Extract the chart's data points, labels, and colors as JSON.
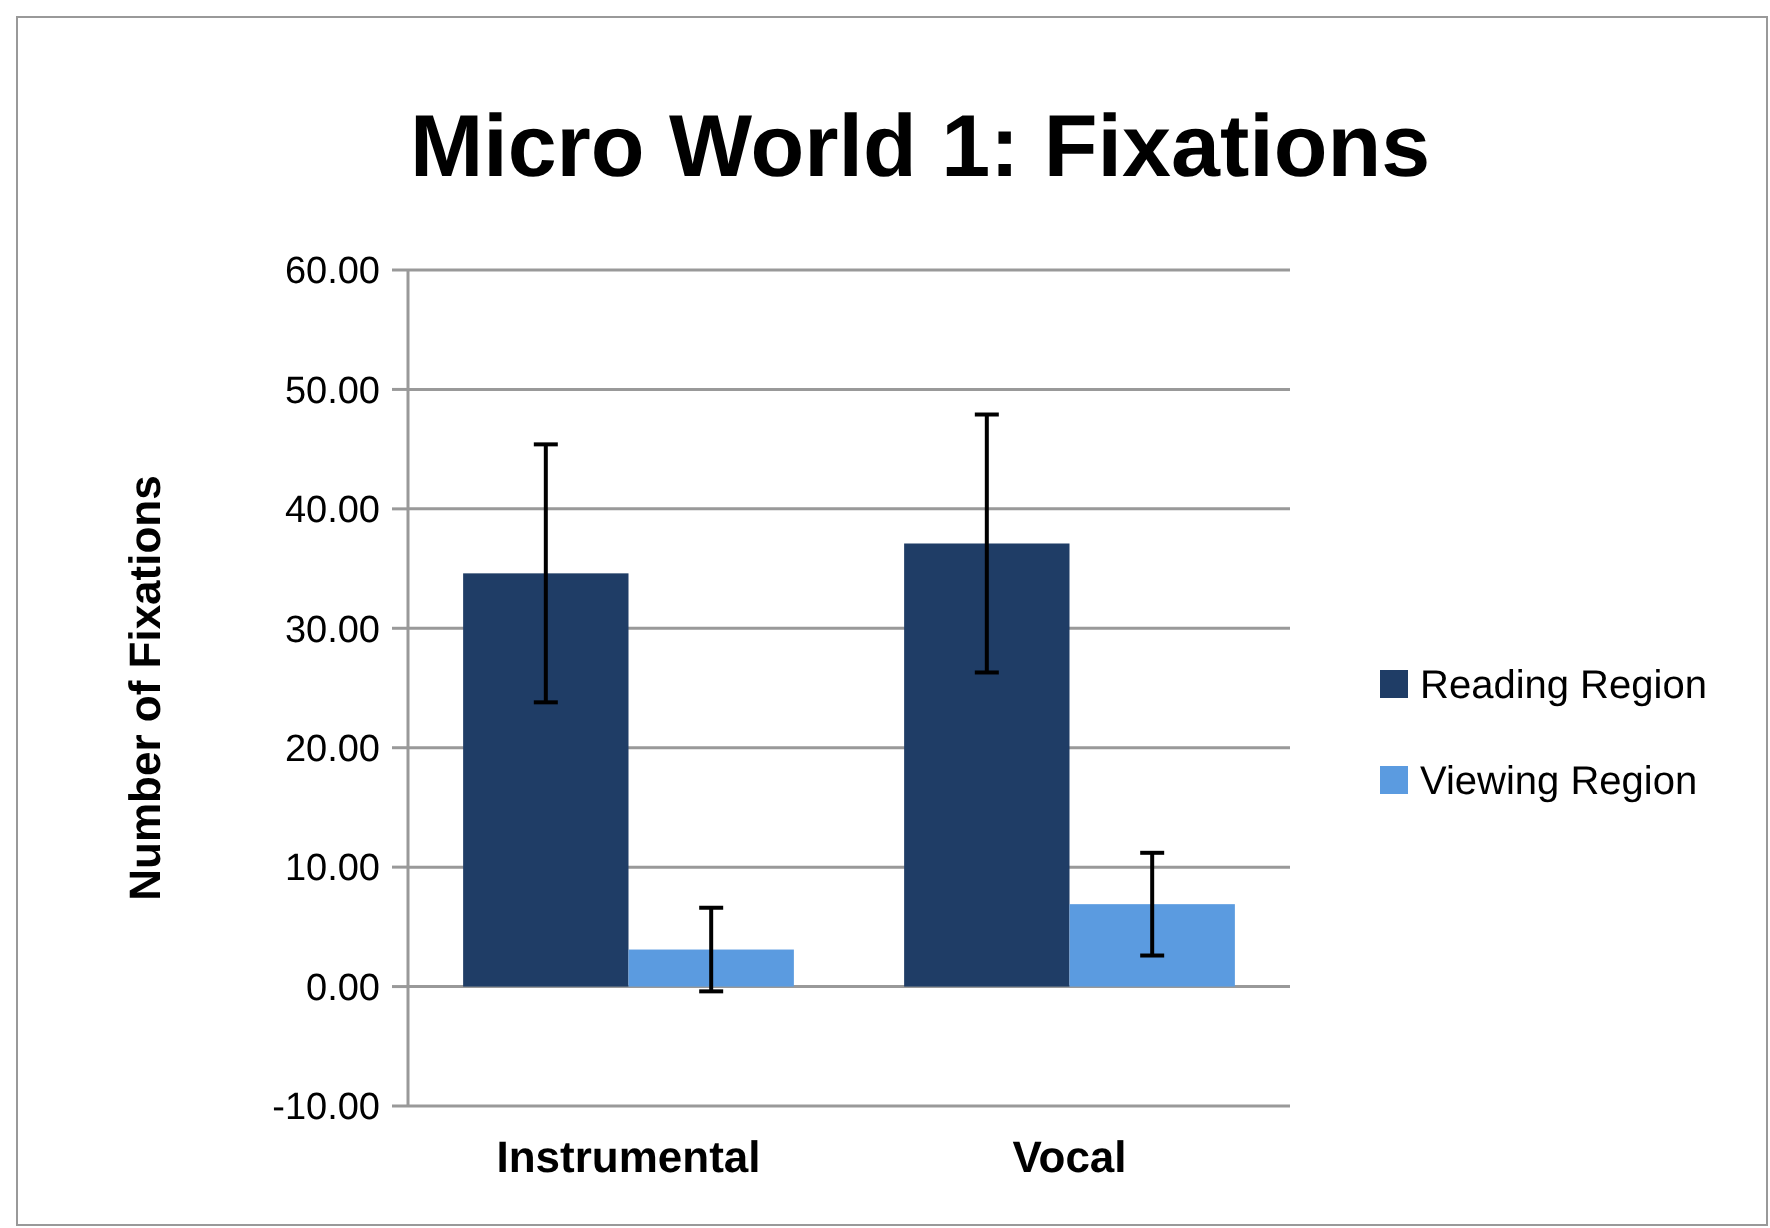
{
  "chart_data": {
    "type": "bar",
    "title": "Micro World 1: Fixations",
    "ylabel": "Number of Fixations",
    "categories": [
      "Instrumental",
      "Vocal"
    ],
    "series": [
      {
        "name": "Reading Region",
        "color": "#1f3d66",
        "values": [
          34.6,
          37.1
        ],
        "errors": [
          10.8,
          10.8
        ]
      },
      {
        "name": "Viewing Region",
        "color": "#5b9be0",
        "values": [
          3.1,
          6.9
        ],
        "errors": [
          3.5,
          4.3
        ]
      }
    ],
    "ylim": [
      -10,
      60
    ],
    "yticks": [
      {
        "value": -10,
        "label": "-10.00"
      },
      {
        "value": 0,
        "label": "0.00"
      },
      {
        "value": 10,
        "label": "10.00"
      },
      {
        "value": 20,
        "label": "20.00"
      },
      {
        "value": 30,
        "label": "30.00"
      },
      {
        "value": 40,
        "label": "40.00"
      },
      {
        "value": 50,
        "label": "50.00"
      },
      {
        "value": 60,
        "label": "60.00"
      }
    ],
    "grid": "y",
    "legend": "right"
  }
}
